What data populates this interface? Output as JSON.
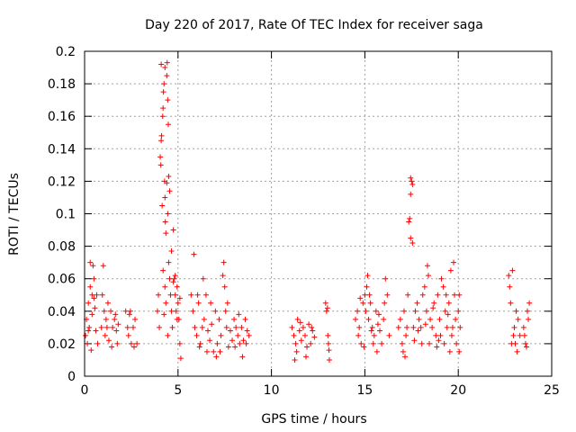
{
  "chart_data": {
    "type": "scatter",
    "title": "Day 220 of 2017, Rate Of TEC Index for receiver saga",
    "xlabel": "GPS time / hours",
    "ylabel": "ROTI / TECUs",
    "xlim": [
      0,
      25
    ],
    "ylim": [
      0,
      0.2
    ],
    "xticks": [
      0,
      5,
      10,
      15,
      20,
      25
    ],
    "xtick_labels": [
      "0",
      "5",
      "10",
      "15",
      "20",
      "25"
    ],
    "yticks": [
      0,
      0.02,
      0.04,
      0.06,
      0.08,
      0.1,
      0.12,
      0.14,
      0.16,
      0.18,
      0.2
    ],
    "ytick_labels": [
      "0",
      "0.02",
      "0.04",
      "0.06",
      "0.08",
      "0.1",
      "0.12",
      "0.14",
      "0.16",
      "0.18",
      "0.2"
    ],
    "grid": true,
    "marker": "+",
    "color": "#ff0000",
    "series": [
      {
        "name": "ROTI",
        "points": [
          [
            0.05,
            0.025
          ],
          [
            0.1,
            0.035
          ],
          [
            0.15,
            0.02
          ],
          [
            0.2,
            0.045
          ],
          [
            0.25,
            0.03
          ],
          [
            0.3,
            0.055
          ],
          [
            0.35,
            0.016
          ],
          [
            0.4,
            0.05
          ],
          [
            0.45,
            0.068
          ],
          [
            0.5,
            0.06
          ],
          [
            0.55,
            0.042
          ],
          [
            0.6,
            0.028
          ],
          [
            0.65,
            0.05
          ],
          [
            0.7,
            0.02
          ],
          [
            0.3,
            0.07
          ],
          [
            0.5,
            0.048
          ],
          [
            0.2,
            0.028
          ],
          [
            0.4,
            0.038
          ],
          [
            0.9,
            0.03
          ],
          [
            0.95,
            0.05
          ],
          [
            1.0,
            0.068
          ],
          [
            1.05,
            0.04
          ],
          [
            1.1,
            0.025
          ],
          [
            1.15,
            0.035
          ],
          [
            1.2,
            0.03
          ],
          [
            1.3,
            0.022
          ],
          [
            1.4,
            0.04
          ],
          [
            1.5,
            0.03
          ],
          [
            1.6,
            0.035
          ],
          [
            1.7,
            0.028
          ],
          [
            1.75,
            0.02
          ],
          [
            1.8,
            0.032
          ],
          [
            1.25,
            0.045
          ],
          [
            1.45,
            0.018
          ],
          [
            1.65,
            0.038
          ],
          [
            2.2,
            0.04
          ],
          [
            2.3,
            0.03
          ],
          [
            2.35,
            0.025
          ],
          [
            2.4,
            0.038
          ],
          [
            2.5,
            0.02
          ],
          [
            2.6,
            0.03
          ],
          [
            2.7,
            0.035
          ],
          [
            2.8,
            0.02
          ],
          [
            2.45,
            0.04
          ],
          [
            2.65,
            0.018
          ],
          [
            3.9,
            0.04
          ],
          [
            3.95,
            0.05
          ],
          [
            4.0,
            0.03
          ],
          [
            4.05,
            0.135
          ],
          [
            4.08,
            0.13
          ],
          [
            4.1,
            0.145
          ],
          [
            4.12,
            0.148
          ],
          [
            4.15,
            0.105
          ],
          [
            4.18,
            0.16
          ],
          [
            4.2,
            0.165
          ],
          [
            4.22,
            0.175
          ],
          [
            4.25,
            0.18
          ],
          [
            4.28,
            0.12
          ],
          [
            4.3,
            0.11
          ],
          [
            4.32,
            0.095
          ],
          [
            4.35,
            0.088
          ],
          [
            4.4,
            0.119
          ],
          [
            4.45,
            0.1
          ],
          [
            4.5,
            0.123
          ],
          [
            4.55,
            0.114
          ],
          [
            4.1,
            0.192
          ],
          [
            4.3,
            0.19
          ],
          [
            4.4,
            0.185
          ],
          [
            4.42,
            0.193
          ],
          [
            4.45,
            0.17
          ],
          [
            4.48,
            0.155
          ],
          [
            4.5,
            0.07
          ],
          [
            4.6,
            0.05
          ],
          [
            4.65,
            0.077
          ],
          [
            4.7,
            0.03
          ],
          [
            4.75,
            0.09
          ],
          [
            4.8,
            0.06
          ],
          [
            4.85,
            0.05
          ],
          [
            4.9,
            0.04
          ],
          [
            4.95,
            0.055
          ],
          [
            5.0,
            0.045
          ],
          [
            5.05,
            0.035
          ],
          [
            5.1,
            0.02
          ],
          [
            5.15,
            0.011
          ],
          [
            4.2,
            0.065
          ],
          [
            4.3,
            0.055
          ],
          [
            4.35,
            0.045
          ],
          [
            4.55,
            0.06
          ],
          [
            4.65,
            0.04
          ],
          [
            4.75,
            0.058
          ],
          [
            4.85,
            0.062
          ],
          [
            4.95,
            0.035
          ],
          [
            5.1,
            0.048
          ],
          [
            4.45,
            0.025
          ],
          [
            4.25,
            0.038
          ],
          [
            5.7,
            0.05
          ],
          [
            5.8,
            0.04
          ],
          [
            5.9,
            0.03
          ],
          [
            6.0,
            0.025
          ],
          [
            6.1,
            0.045
          ],
          [
            6.2,
            0.02
          ],
          [
            6.3,
            0.03
          ],
          [
            6.4,
            0.035
          ],
          [
            6.5,
            0.05
          ],
          [
            6.6,
            0.028
          ],
          [
            6.7,
            0.022
          ],
          [
            6.8,
            0.032
          ],
          [
            6.9,
            0.015
          ],
          [
            7.0,
            0.04
          ],
          [
            7.1,
            0.02
          ],
          [
            7.2,
            0.035
          ],
          [
            7.3,
            0.025
          ],
          [
            7.4,
            0.062
          ],
          [
            7.45,
            0.07
          ],
          [
            7.5,
            0.055
          ],
          [
            7.6,
            0.03
          ],
          [
            7.7,
            0.018
          ],
          [
            7.8,
            0.028
          ],
          [
            7.9,
            0.022
          ],
          [
            8.0,
            0.035
          ],
          [
            8.1,
            0.03
          ],
          [
            8.2,
            0.025
          ],
          [
            8.3,
            0.02
          ],
          [
            8.4,
            0.03
          ],
          [
            8.5,
            0.022
          ],
          [
            8.6,
            0.035
          ],
          [
            8.7,
            0.028
          ],
          [
            8.8,
            0.025
          ],
          [
            5.85,
            0.075
          ],
          [
            6.35,
            0.06
          ],
          [
            6.75,
            0.045
          ],
          [
            7.25,
            0.015
          ],
          [
            7.55,
            0.04
          ],
          [
            8.25,
            0.038
          ],
          [
            8.45,
            0.012
          ],
          [
            6.05,
            0.05
          ],
          [
            6.15,
            0.018
          ],
          [
            6.55,
            0.015
          ],
          [
            7.05,
            0.012
          ],
          [
            7.65,
            0.045
          ],
          [
            8.05,
            0.018
          ],
          [
            8.65,
            0.02
          ],
          [
            11.1,
            0.03
          ],
          [
            11.2,
            0.025
          ],
          [
            11.3,
            0.02
          ],
          [
            11.35,
            0.015
          ],
          [
            11.4,
            0.035
          ],
          [
            11.5,
            0.028
          ],
          [
            11.6,
            0.022
          ],
          [
            11.7,
            0.03
          ],
          [
            11.8,
            0.025
          ],
          [
            11.9,
            0.018
          ],
          [
            12.0,
            0.032
          ],
          [
            12.1,
            0.02
          ],
          [
            12.2,
            0.028
          ],
          [
            12.3,
            0.024
          ],
          [
            11.25,
            0.01
          ],
          [
            11.55,
            0.033
          ],
          [
            11.85,
            0.012
          ],
          [
            12.15,
            0.03
          ],
          [
            12.9,
            0.045
          ],
          [
            12.95,
            0.04
          ],
          [
            13.0,
            0.042
          ],
          [
            13.02,
            0.025
          ],
          [
            13.05,
            0.02
          ],
          [
            13.08,
            0.016
          ],
          [
            13.1,
            0.01
          ],
          [
            14.5,
            0.035
          ],
          [
            14.6,
            0.04
          ],
          [
            14.7,
            0.03
          ],
          [
            14.8,
            0.02
          ],
          [
            14.9,
            0.045
          ],
          [
            15.0,
            0.05
          ],
          [
            15.1,
            0.055
          ],
          [
            15.15,
            0.062
          ],
          [
            15.2,
            0.035
          ],
          [
            15.3,
            0.045
          ],
          [
            15.4,
            0.03
          ],
          [
            15.5,
            0.025
          ],
          [
            15.6,
            0.04
          ],
          [
            15.7,
            0.032
          ],
          [
            15.8,
            0.028
          ],
          [
            15.9,
            0.02
          ],
          [
            16.0,
            0.035
          ],
          [
            16.1,
            0.06
          ],
          [
            16.2,
            0.05
          ],
          [
            16.3,
            0.025
          ],
          [
            14.65,
            0.025
          ],
          [
            14.95,
            0.018
          ],
          [
            15.25,
            0.05
          ],
          [
            15.45,
            0.02
          ],
          [
            15.75,
            0.038
          ],
          [
            16.05,
            0.045
          ],
          [
            15.05,
            0.04
          ],
          [
            15.35,
            0.028
          ],
          [
            15.65,
            0.015
          ],
          [
            14.75,
            0.048
          ],
          [
            16.8,
            0.03
          ],
          [
            16.9,
            0.035
          ],
          [
            17.0,
            0.02
          ],
          [
            17.05,
            0.015
          ],
          [
            17.1,
            0.04
          ],
          [
            17.15,
            0.012
          ],
          [
            17.2,
            0.025
          ],
          [
            17.3,
            0.05
          ],
          [
            17.35,
            0.095
          ],
          [
            17.4,
            0.097
          ],
          [
            17.45,
            0.085
          ],
          [
            17.5,
            0.12
          ],
          [
            17.55,
            0.082
          ],
          [
            17.45,
            0.122
          ],
          [
            17.55,
            0.118
          ],
          [
            17.45,
            0.112
          ],
          [
            17.6,
            0.03
          ],
          [
            17.7,
            0.04
          ],
          [
            17.8,
            0.045
          ],
          [
            17.9,
            0.035
          ],
          [
            18.0,
            0.03
          ],
          [
            18.1,
            0.05
          ],
          [
            18.2,
            0.055
          ],
          [
            18.3,
            0.04
          ],
          [
            18.4,
            0.062
          ],
          [
            18.5,
            0.035
          ],
          [
            18.6,
            0.03
          ],
          [
            18.7,
            0.045
          ],
          [
            18.8,
            0.025
          ],
          [
            18.9,
            0.05
          ],
          [
            19.0,
            0.035
          ],
          [
            19.1,
            0.06
          ],
          [
            19.2,
            0.055
          ],
          [
            19.3,
            0.04
          ],
          [
            19.4,
            0.03
          ],
          [
            19.5,
            0.045
          ],
          [
            19.6,
            0.065
          ],
          [
            19.7,
            0.03
          ],
          [
            19.8,
            0.05
          ],
          [
            19.9,
            0.02
          ],
          [
            20.0,
            0.04
          ],
          [
            20.05,
            0.015
          ],
          [
            20.1,
            0.03
          ],
          [
            17.25,
            0.03
          ],
          [
            17.65,
            0.022
          ],
          [
            17.85,
            0.028
          ],
          [
            18.05,
            0.02
          ],
          [
            18.25,
            0.032
          ],
          [
            18.45,
            0.02
          ],
          [
            18.65,
            0.042
          ],
          [
            18.85,
            0.018
          ],
          [
            19.05,
            0.025
          ],
          [
            19.25,
            0.02
          ],
          [
            19.45,
            0.038
          ],
          [
            19.65,
            0.025
          ],
          [
            19.85,
            0.035
          ],
          [
            20.05,
            0.05
          ],
          [
            18.35,
            0.068
          ],
          [
            19.75,
            0.07
          ],
          [
            18.95,
            0.022
          ],
          [
            19.35,
            0.05
          ],
          [
            19.55,
            0.015
          ],
          [
            22.7,
            0.062
          ],
          [
            22.75,
            0.055
          ],
          [
            22.8,
            0.045
          ],
          [
            22.9,
            0.065
          ],
          [
            22.95,
            0.025
          ],
          [
            23.0,
            0.03
          ],
          [
            23.05,
            0.02
          ],
          [
            23.1,
            0.04
          ],
          [
            23.15,
            0.015
          ],
          [
            23.2,
            0.035
          ],
          [
            23.3,
            0.025
          ],
          [
            23.5,
            0.03
          ],
          [
            23.6,
            0.02
          ],
          [
            23.7,
            0.04
          ],
          [
            23.75,
            0.035
          ],
          [
            23.8,
            0.045
          ],
          [
            23.65,
            0.018
          ],
          [
            23.55,
            0.025
          ],
          [
            22.85,
            0.02
          ]
        ]
      }
    ]
  }
}
